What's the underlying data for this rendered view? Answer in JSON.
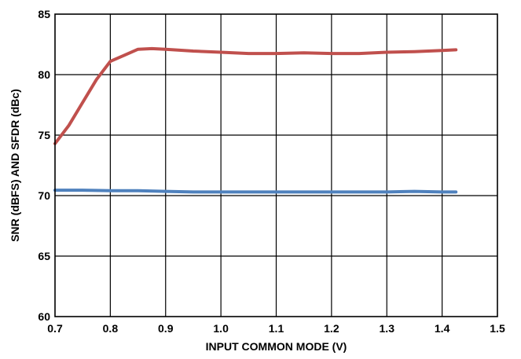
{
  "chart_data": {
    "type": "line",
    "xlabel": "INPUT COMMON MODE (V)",
    "ylabel": "SNR (dBFS) AND SFDR (dBc)",
    "xlim": [
      0.7,
      1.5
    ],
    "ylim": [
      60,
      85
    ],
    "x_ticks": [
      "0.7",
      "0.8",
      "0.9",
      "1.0",
      "1.1",
      "1.2",
      "1.3",
      "1.4",
      "1.5"
    ],
    "y_ticks": [
      "60",
      "65",
      "70",
      "75",
      "80",
      "85"
    ],
    "grid": true,
    "series": [
      {
        "color": "#c0504d",
        "x": [
          0.7,
          0.725,
          0.75,
          0.775,
          0.8,
          0.825,
          0.85,
          0.875,
          0.9,
          0.95,
          1.0,
          1.05,
          1.1,
          1.15,
          1.2,
          1.25,
          1.3,
          1.35,
          1.4,
          1.425
        ],
        "values": [
          74.3,
          75.8,
          77.7,
          79.6,
          81.1,
          81.6,
          82.1,
          82.15,
          82.1,
          81.95,
          81.85,
          81.75,
          81.75,
          81.8,
          81.75,
          81.75,
          81.85,
          81.9,
          82.0,
          82.05
        ]
      },
      {
        "color": "#4f81bd",
        "x": [
          0.7,
          0.75,
          0.8,
          0.85,
          0.9,
          0.95,
          1.0,
          1.05,
          1.1,
          1.15,
          1.2,
          1.25,
          1.3,
          1.35,
          1.4,
          1.425
        ],
        "values": [
          70.45,
          70.45,
          70.4,
          70.4,
          70.35,
          70.3,
          70.3,
          70.3,
          70.3,
          70.3,
          70.3,
          70.3,
          70.3,
          70.35,
          70.3,
          70.3
        ]
      }
    ]
  }
}
